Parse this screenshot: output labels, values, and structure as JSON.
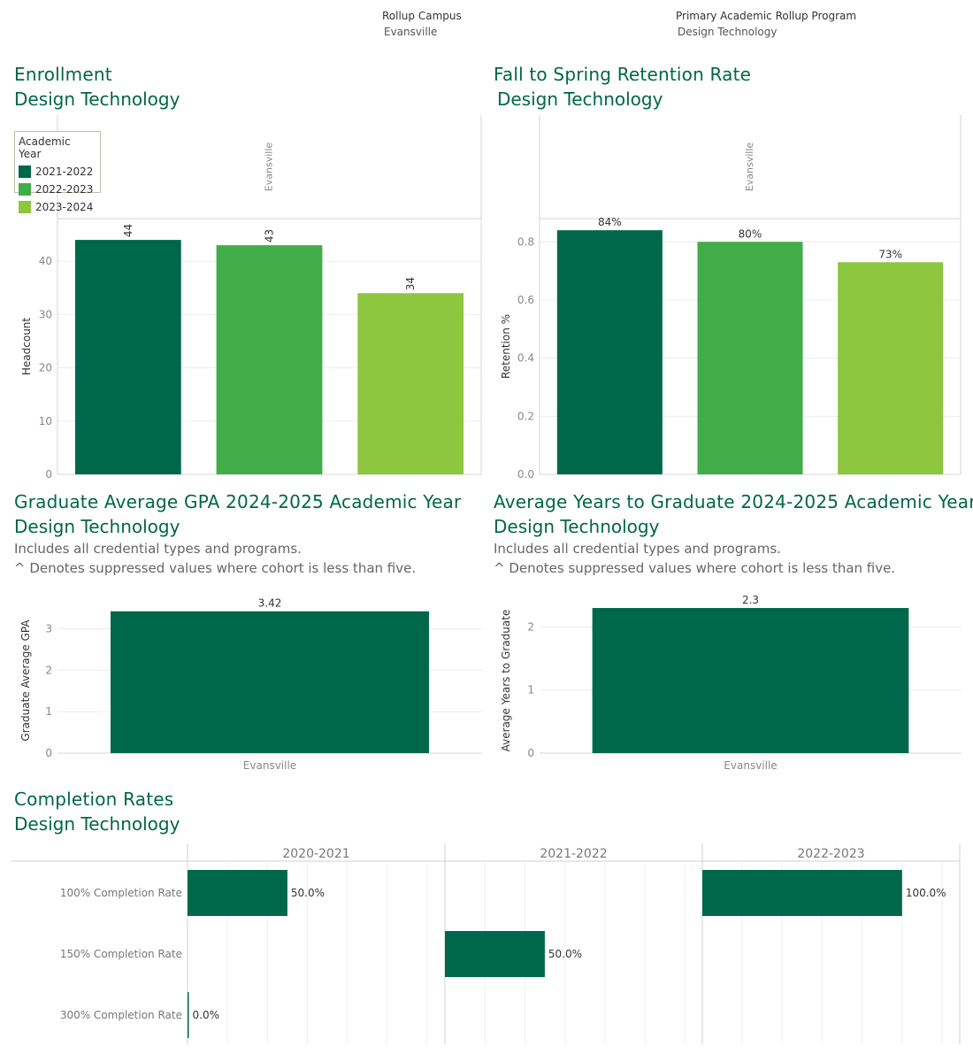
{
  "filters": {
    "campus_label": "Rollup Campus",
    "campus_value": "Evansville",
    "program_label": "Primary Academic Rollup Program",
    "program_value": "Design Technology"
  },
  "colors": {
    "dark_green": "#00684a",
    "mid_green": "#41ad49",
    "light_green": "#8dc63f",
    "title_green": "#006747"
  },
  "sections": {
    "enrollment": {
      "title": "Enrollment",
      "subtitle": "Design Technology"
    },
    "retention": {
      "title": "Fall to Spring Retention Rate",
      "subtitle": "Design Technology"
    },
    "gpa": {
      "title": "Graduate Average GPA 2024-2025 Academic Year",
      "subtitle": "Design Technology",
      "note1": "Includes all credential types and programs.",
      "note2": "^ Denotes suppressed values where cohort is less than five."
    },
    "years": {
      "title": "Average Years to Graduate 2024-2025 Academic Year",
      "subtitle": "Design Technology",
      "note1": "Includes all credential types and programs.",
      "note2": "^ Denotes suppressed values where cohort is less than five."
    },
    "completion": {
      "title": "Completion Rates",
      "subtitle": "Design Technology"
    }
  },
  "legend": {
    "title": "Academic Year",
    "items": [
      "2021-2022",
      "2022-2023",
      "2023-2024"
    ]
  },
  "chart_data": [
    {
      "id": "enrollment",
      "type": "bar",
      "column_header": "Evansville",
      "categories": [
        "2021-2022",
        "2022-2023",
        "2023-2024"
      ],
      "values": [
        44,
        43,
        34
      ],
      "labels": [
        "44",
        "43",
        "34"
      ],
      "ylabel": "Headcount",
      "ylim": [
        0,
        48
      ],
      "yticks": [
        0,
        10,
        20,
        30,
        40
      ],
      "ytick_labels": [
        "0",
        "10",
        "20",
        "30",
        "40"
      ],
      "grid": true
    },
    {
      "id": "retention",
      "type": "bar",
      "column_header": "Evansville",
      "categories": [
        "2021-2022",
        "2022-2023",
        "2023-2024"
      ],
      "values": [
        0.84,
        0.8,
        0.73
      ],
      "labels": [
        "84%",
        "80%",
        "73%"
      ],
      "ylabel": "Retention %",
      "ylim": [
        0,
        0.88
      ],
      "yticks": [
        0,
        0.2,
        0.4,
        0.6,
        0.8
      ],
      "ytick_labels": [
        "0.0",
        "0.2",
        "0.4",
        "0.6",
        "0.8"
      ],
      "grid": true
    },
    {
      "id": "gpa",
      "type": "bar",
      "categories": [
        "Evansville"
      ],
      "values": [
        3.42
      ],
      "labels": [
        "3.42"
      ],
      "ylabel": "Graduate Average GPA",
      "ylim": [
        0,
        3.5
      ],
      "yticks": [
        0,
        1,
        2,
        3
      ],
      "ytick_labels": [
        "0",
        "1",
        "2",
        "3"
      ],
      "grid": true
    },
    {
      "id": "years",
      "type": "bar",
      "categories": [
        "Evansville"
      ],
      "values": [
        2.3
      ],
      "labels": [
        "2.3"
      ],
      "ylabel": "Average Years to Graduate",
      "ylim": [
        0,
        2.3
      ],
      "yticks": [
        0,
        1,
        2
      ],
      "ytick_labels": [
        "0",
        "1",
        "2"
      ],
      "grid": true
    },
    {
      "id": "completion",
      "type": "bar",
      "orientation": "horizontal",
      "panels": [
        "2020-2021",
        "2021-2022",
        "2022-2023"
      ],
      "rows": [
        "100% Completion Rate",
        "150% Completion Rate",
        "300% Completion Rate"
      ],
      "values": [
        [
          50.0,
          null,
          0.0
        ],
        [
          null,
          50.0,
          null
        ],
        [
          100.0,
          null,
          null
        ]
      ],
      "labels": [
        [
          "50.0%",
          "",
          "0.0%"
        ],
        [
          "",
          "50.0%",
          ""
        ],
        [
          "100.0%",
          "",
          ""
        ]
      ],
      "xlim": [
        0,
        120
      ],
      "grid": true
    }
  ]
}
